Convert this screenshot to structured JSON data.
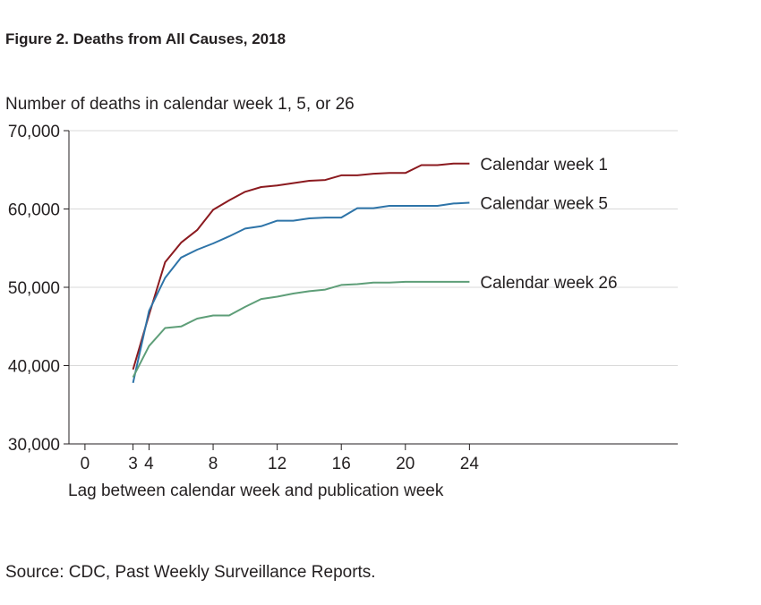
{
  "figure_title": "Figure 2. Deaths from All Causes, 2018",
  "source_text": "Source: CDC, Past Weekly Surveillance Reports.",
  "chart_data": {
    "type": "line",
    "title": "Figure 2. Deaths from All Causes, 2018",
    "ylabel": "Number of deaths in calendar week 1, 5, or 26",
    "xlabel": "Lag between calendar week and publication week",
    "xlim": [
      -1,
      37
    ],
    "ylim": [
      30000,
      70000
    ],
    "x_ticks": [
      0,
      3,
      4,
      8,
      12,
      16,
      20,
      24
    ],
    "x_tick_labels": [
      "0",
      "3",
      "4",
      "8",
      "12",
      "16",
      "20",
      "24"
    ],
    "y_ticks": [
      30000,
      40000,
      50000,
      60000,
      70000
    ],
    "y_tick_labels": [
      "30,000",
      "40,000",
      "50,000",
      "60,000",
      "70,000"
    ],
    "grid": "horizontal",
    "legend": "labels at line ends",
    "x": [
      3,
      4,
      5,
      6,
      7,
      8,
      9,
      10,
      11,
      12,
      13,
      14,
      15,
      16,
      17,
      18,
      19,
      20,
      21,
      22,
      23,
      24
    ],
    "series": [
      {
        "name": "Calendar week 1",
        "color": "#8b1a1f",
        "values": [
          39500,
          46500,
          53200,
          55700,
          57300,
          59900,
          61100,
          62200,
          62800,
          63000,
          63300,
          63600,
          63700,
          64300,
          64300,
          64500,
          64600,
          64600,
          65600,
          65600,
          65800,
          65800
        ]
      },
      {
        "name": "Calendar week 5",
        "color": "#2e74a8",
        "values": [
          37800,
          47000,
          51200,
          53800,
          54800,
          55600,
          56500,
          57500,
          57800,
          58500,
          58500,
          58800,
          58900,
          58900,
          60100,
          60100,
          60400,
          60400,
          60400,
          60400,
          60700,
          60800
        ]
      },
      {
        "name": "Calendar week 26",
        "color": "#5e9e78",
        "values": [
          38500,
          42500,
          44800,
          45000,
          46000,
          46400,
          46400,
          47500,
          48500,
          48800,
          49200,
          49500,
          49700,
          50300,
          50400,
          50600,
          50600,
          50700,
          50700,
          50700,
          50700,
          50700
        ]
      }
    ]
  }
}
